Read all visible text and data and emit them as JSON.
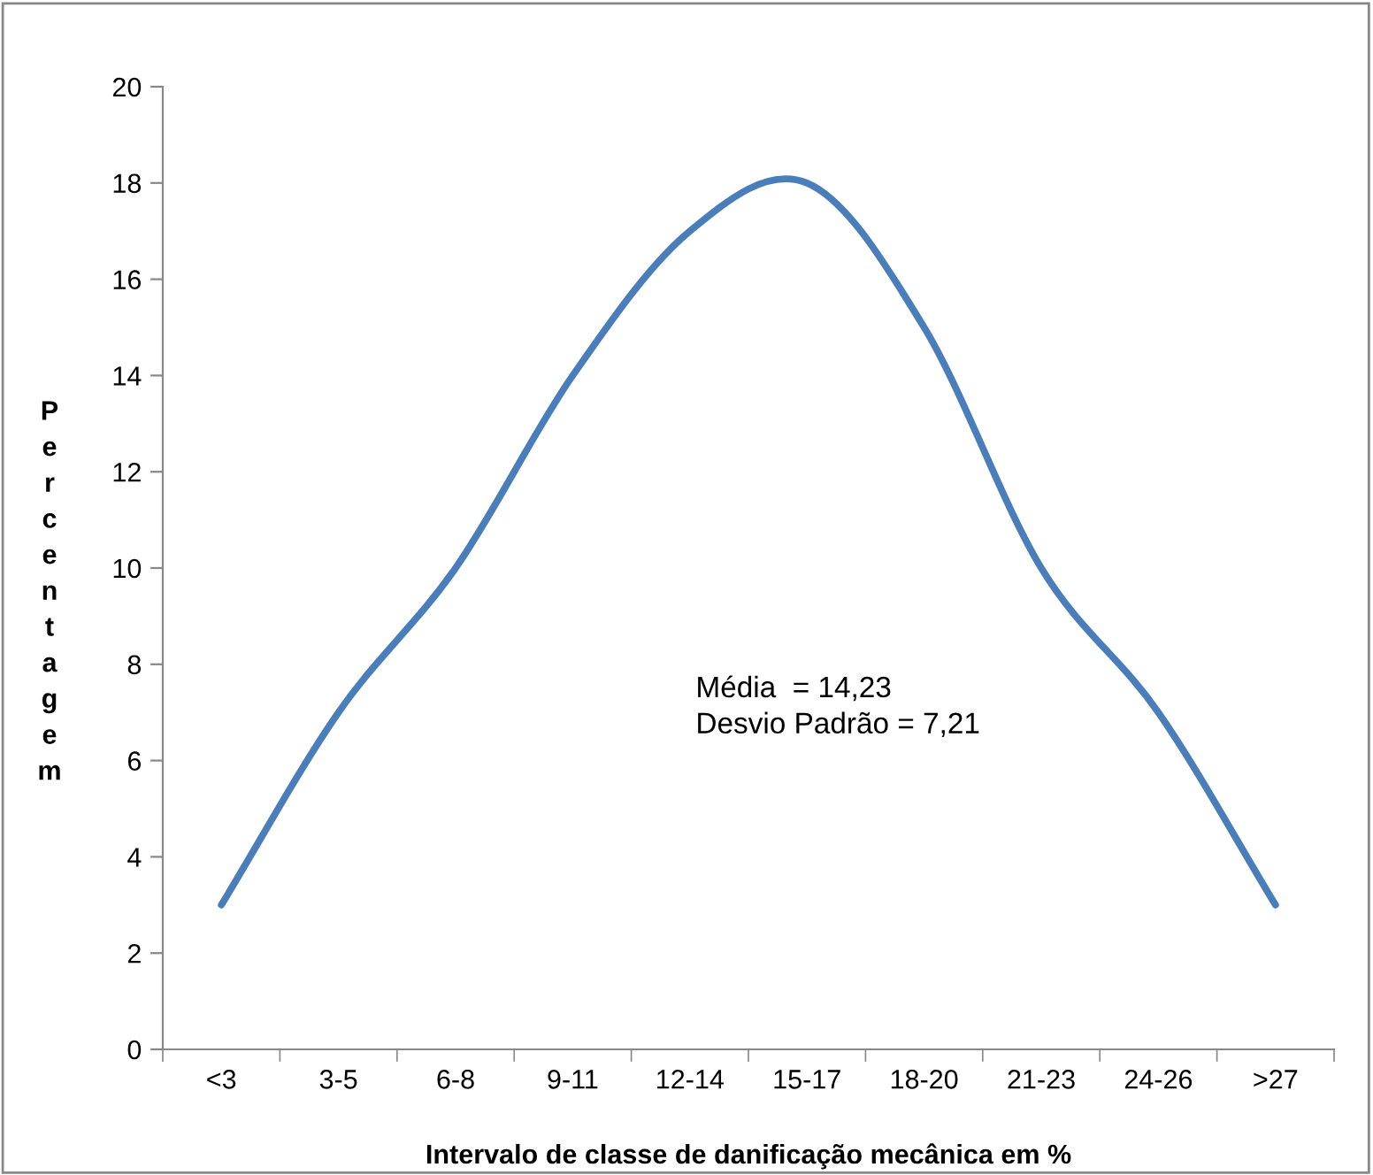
{
  "chart_data": {
    "type": "line",
    "xlabel": "Intervalo de classe de danificação mecânica em %",
    "ylabel": "Percentagem",
    "categories": [
      "<3",
      "3-5",
      "6-8",
      "9-11",
      "12-14",
      "15-17",
      "18-20",
      "21-23",
      "24-26",
      ">27"
    ],
    "series": [
      {
        "color": "#4a7ebb",
        "values": [
          3,
          7,
          10,
          14,
          17,
          18,
          15,
          10,
          7,
          3
        ]
      }
    ],
    "ylim": [
      0,
      20
    ],
    "yticks": [
      0,
      2,
      4,
      6,
      8,
      10,
      12,
      14,
      16,
      18,
      20
    ],
    "grid": false,
    "legend": false,
    "marker": "none",
    "line_style": "solid",
    "annotations": [
      "Média  = 14,23",
      "Desvio Padrão = 7,21"
    ]
  }
}
